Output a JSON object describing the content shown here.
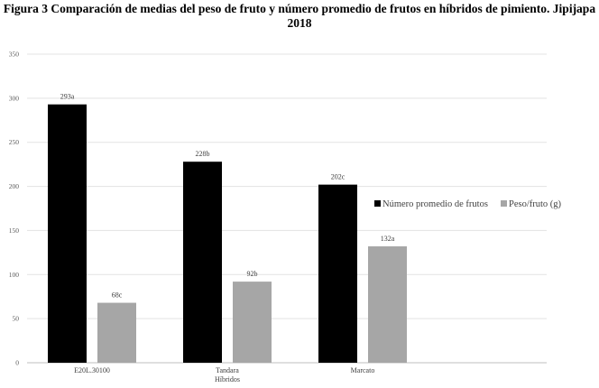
{
  "figure_title": "Figura 3 Comparación de medias del peso de fruto y número promedio de frutos en híbridos de pimiento. Jipijapa 2018",
  "chart_data": {
    "type": "bar",
    "title": "Figura 3 Comparación de medias del peso de fruto y número promedio de frutos en híbridos de pimiento. Jipijapa 2018",
    "xlabel": "Híbridos",
    "ylabel": "",
    "categories": [
      "E20L.30100",
      "Tandara",
      "Marcato"
    ],
    "ylim": [
      0,
      350
    ],
    "yticks": [
      0,
      50,
      100,
      150,
      200,
      250,
      300,
      350
    ],
    "grid": true,
    "legend_position": "right",
    "series": [
      {
        "name": "Número promedio de frutos",
        "color": "#000000",
        "values": [
          293,
          228,
          202
        ],
        "labels": [
          "293a",
          "228b",
          "202c"
        ]
      },
      {
        "name": "Peso/fruto (g)",
        "color": "#a6a6a6",
        "values": [
          68,
          92,
          132
        ],
        "labels": [
          "68c",
          "92b",
          "132a"
        ]
      }
    ]
  }
}
